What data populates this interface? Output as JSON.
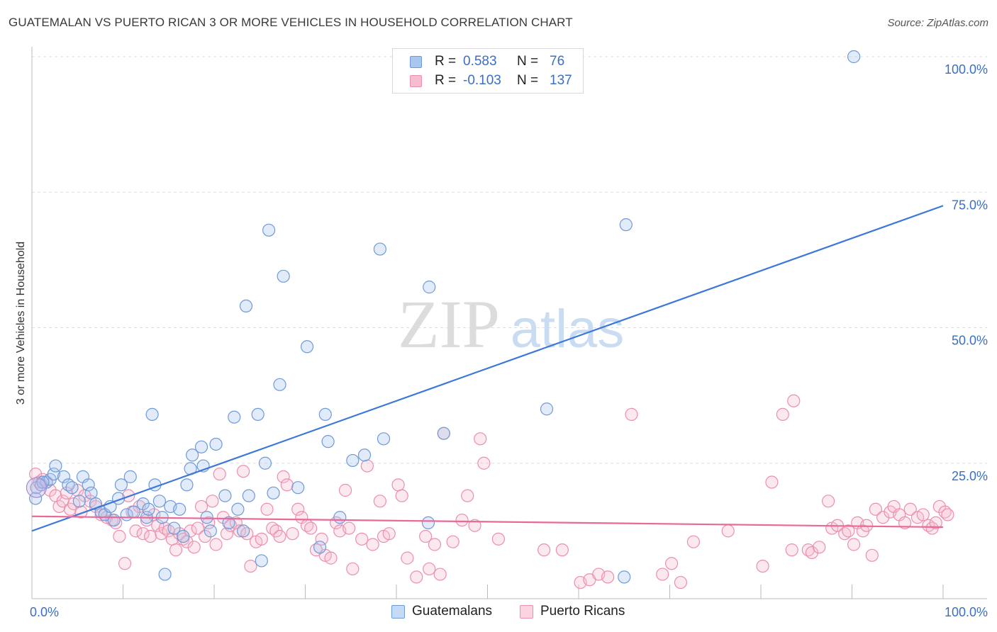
{
  "title": "GUATEMALAN VS PUERTO RICAN 3 OR MORE VEHICLES IN HOUSEHOLD CORRELATION CHART",
  "source": "Source: ZipAtlas.com",
  "watermark": {
    "zip": "ZIP",
    "atlas": "atlas"
  },
  "legend": {
    "r_label": "R =",
    "n_label": "N =",
    "rows": [
      {
        "r": "0.583",
        "n": "76",
        "color": "#a9c6ee",
        "border": "#6f9ad8"
      },
      {
        "r": "-0.103",
        "n": "137",
        "color": "#f6bcd0",
        "border": "#ea8fae"
      }
    ]
  },
  "chart_data": {
    "type": "scatter",
    "title": "GUATEMALAN VS PUERTO RICAN 3 OR MORE VEHICLES IN HOUSEHOLD CORRELATION CHART",
    "xlabel": "",
    "ylabel": "3 or more Vehicles in Household",
    "x_tick_labels": [
      "0.0%",
      "100.0%"
    ],
    "y_tick_labels": [
      "25.0%",
      "50.0%",
      "75.0%",
      "100.0%"
    ],
    "xlim": [
      0,
      100
    ],
    "ylim": [
      0,
      100
    ],
    "grid": true,
    "legend_position": "top-center",
    "series": [
      {
        "name": "Guatemalans",
        "color": "#6f9ad8",
        "fill": "#a9c6ee",
        "trend_color": "#3c78d8",
        "trend": [
          [
            0,
            12.5
          ],
          [
            100,
            72.5
          ]
        ],
        "points": [
          [
            0.4,
            18.5
          ],
          [
            0.5,
            20.5
          ],
          [
            1.0,
            21.0
          ],
          [
            1.6,
            21.5
          ],
          [
            2.0,
            22.0
          ],
          [
            2.4,
            23.0
          ],
          [
            2.6,
            24.5
          ],
          [
            3.5,
            22.5
          ],
          [
            4.0,
            21.0
          ],
          [
            4.4,
            20.5
          ],
          [
            5.2,
            18.0
          ],
          [
            5.6,
            22.5
          ],
          [
            6.2,
            21.0
          ],
          [
            6.5,
            19.5
          ],
          [
            7.0,
            17.5
          ],
          [
            7.6,
            16.0
          ],
          [
            8.0,
            15.5
          ],
          [
            8.6,
            17.0
          ],
          [
            9.0,
            14.5
          ],
          [
            9.5,
            18.5
          ],
          [
            9.8,
            21.0
          ],
          [
            10.4,
            15.5
          ],
          [
            10.8,
            22.5
          ],
          [
            11.2,
            16.0
          ],
          [
            12.2,
            17.5
          ],
          [
            12.6,
            15.0
          ],
          [
            12.8,
            16.5
          ],
          [
            13.2,
            34.0
          ],
          [
            13.5,
            21.0
          ],
          [
            14.0,
            18.0
          ],
          [
            14.3,
            15.0
          ],
          [
            14.6,
            4.5
          ],
          [
            15.2,
            17.0
          ],
          [
            15.6,
            13.0
          ],
          [
            16.2,
            16.5
          ],
          [
            16.6,
            11.5
          ],
          [
            17.0,
            21.0
          ],
          [
            17.4,
            24.0
          ],
          [
            17.6,
            26.5
          ],
          [
            18.6,
            28.0
          ],
          [
            18.8,
            24.5
          ],
          [
            19.2,
            15.0
          ],
          [
            19.6,
            12.5
          ],
          [
            20.2,
            28.5
          ],
          [
            21.2,
            19.0
          ],
          [
            21.6,
            14.0
          ],
          [
            22.2,
            33.5
          ],
          [
            22.6,
            16.5
          ],
          [
            23.2,
            12.5
          ],
          [
            23.5,
            54.0
          ],
          [
            23.8,
            19.0
          ],
          [
            24.8,
            34.0
          ],
          [
            25.2,
            7.0
          ],
          [
            25.6,
            25.0
          ],
          [
            26.0,
            68.0
          ],
          [
            26.5,
            19.5
          ],
          [
            27.2,
            39.5
          ],
          [
            27.6,
            59.5
          ],
          [
            29.2,
            20.5
          ],
          [
            30.2,
            46.5
          ],
          [
            31.6,
            9.5
          ],
          [
            32.2,
            34.0
          ],
          [
            32.5,
            29.0
          ],
          [
            33.8,
            15.0
          ],
          [
            35.2,
            25.5
          ],
          [
            36.5,
            26.5
          ],
          [
            38.2,
            64.5
          ],
          [
            38.6,
            29.5
          ],
          [
            43.6,
            57.5
          ],
          [
            43.5,
            14.0
          ],
          [
            45.2,
            30.5
          ],
          [
            56.5,
            35.0
          ],
          [
            65.2,
            69.0
          ],
          [
            65.0,
            4.0
          ],
          [
            90.2,
            100.0
          ],
          [
            1.2,
            21.5
          ]
        ]
      },
      {
        "name": "Puerto Ricans",
        "color": "#ea8fae",
        "fill": "#f6bcd0",
        "trend_color": "#e8699a",
        "trend": [
          [
            0,
            15.2
          ],
          [
            100,
            13.2
          ]
        ],
        "points": [
          [
            0.4,
            23.0
          ],
          [
            0.8,
            21.5
          ],
          [
            1.2,
            22.0
          ],
          [
            1.6,
            21.5
          ],
          [
            2.0,
            20.0
          ],
          [
            2.6,
            19.0
          ],
          [
            3.0,
            17.0
          ],
          [
            3.4,
            18.0
          ],
          [
            3.8,
            19.5
          ],
          [
            4.2,
            16.5
          ],
          [
            4.6,
            17.5
          ],
          [
            5.0,
            20.0
          ],
          [
            5.4,
            16.0
          ],
          [
            5.8,
            19.0
          ],
          [
            6.4,
            18.0
          ],
          [
            7.0,
            17.0
          ],
          [
            7.6,
            15.5
          ],
          [
            8.2,
            15.0
          ],
          [
            8.8,
            14.5
          ],
          [
            9.2,
            14.0
          ],
          [
            9.6,
            11.5
          ],
          [
            10.2,
            6.5
          ],
          [
            10.6,
            19.0
          ],
          [
            11.0,
            16.0
          ],
          [
            11.4,
            12.5
          ],
          [
            11.8,
            17.0
          ],
          [
            12.2,
            12.0
          ],
          [
            12.6,
            14.5
          ],
          [
            13.0,
            11.5
          ],
          [
            13.4,
            15.5
          ],
          [
            13.8,
            13.5
          ],
          [
            14.2,
            12.0
          ],
          [
            14.6,
            13.0
          ],
          [
            15.0,
            12.5
          ],
          [
            15.4,
            11.0
          ],
          [
            15.8,
            9.0
          ],
          [
            16.2,
            12.0
          ],
          [
            16.6,
            11.0
          ],
          [
            17.0,
            10.5
          ],
          [
            17.4,
            12.5
          ],
          [
            17.8,
            9.5
          ],
          [
            18.2,
            13.0
          ],
          [
            18.6,
            17.0
          ],
          [
            19.0,
            11.5
          ],
          [
            19.4,
            14.0
          ],
          [
            19.8,
            18.0
          ],
          [
            20.2,
            10.0
          ],
          [
            20.6,
            23.0
          ],
          [
            21.0,
            15.0
          ],
          [
            21.4,
            12.0
          ],
          [
            21.8,
            13.5
          ],
          [
            22.4,
            14.0
          ],
          [
            22.8,
            12.5
          ],
          [
            23.2,
            23.5
          ],
          [
            23.6,
            12.0
          ],
          [
            24.0,
            6.0
          ],
          [
            24.6,
            10.5
          ],
          [
            25.2,
            11.0
          ],
          [
            25.8,
            16.5
          ],
          [
            26.4,
            13.0
          ],
          [
            26.8,
            12.5
          ],
          [
            27.2,
            11.5
          ],
          [
            27.6,
            22.5
          ],
          [
            28.0,
            21.0
          ],
          [
            28.6,
            12.0
          ],
          [
            29.2,
            16.5
          ],
          [
            29.6,
            15.0
          ],
          [
            30.2,
            13.5
          ],
          [
            30.6,
            13.0
          ],
          [
            31.2,
            9.0
          ],
          [
            31.8,
            11.0
          ],
          [
            32.2,
            8.0
          ],
          [
            32.8,
            7.5
          ],
          [
            33.4,
            14.0
          ],
          [
            33.8,
            12.5
          ],
          [
            34.4,
            20.0
          ],
          [
            34.8,
            13.0
          ],
          [
            35.2,
            5.5
          ],
          [
            36.2,
            11.0
          ],
          [
            36.8,
            24.5
          ],
          [
            37.4,
            10.0
          ],
          [
            38.2,
            18.0
          ],
          [
            38.6,
            11.5
          ],
          [
            39.2,
            12.0
          ],
          [
            40.2,
            21.0
          ],
          [
            40.6,
            19.0
          ],
          [
            41.2,
            7.5
          ],
          [
            42.2,
            4.0
          ],
          [
            43.2,
            11.5
          ],
          [
            43.6,
            5.5
          ],
          [
            44.2,
            10.0
          ],
          [
            44.8,
            4.5
          ],
          [
            45.2,
            30.5
          ],
          [
            46.2,
            10.5
          ],
          [
            47.2,
            14.5
          ],
          [
            47.8,
            19.0
          ],
          [
            48.6,
            13.5
          ],
          [
            49.2,
            29.5
          ],
          [
            49.6,
            25.0
          ],
          [
            51.2,
            11.0
          ],
          [
            56.2,
            9.0
          ],
          [
            58.2,
            9.0
          ],
          [
            60.2,
            3.0
          ],
          [
            61.2,
            3.5
          ],
          [
            62.2,
            4.5
          ],
          [
            63.2,
            4.0
          ],
          [
            65.8,
            34.0
          ],
          [
            69.2,
            4.5
          ],
          [
            70.2,
            6.5
          ],
          [
            71.2,
            3.0
          ],
          [
            72.6,
            10.5
          ],
          [
            76.4,
            12.5
          ],
          [
            80.2,
            6.0
          ],
          [
            81.2,
            21.5
          ],
          [
            82.4,
            34.0
          ],
          [
            83.6,
            36.5
          ],
          [
            83.4,
            9.0
          ],
          [
            85.2,
            9.0
          ],
          [
            85.6,
            8.5
          ],
          [
            86.4,
            9.5
          ],
          [
            87.4,
            18.0
          ],
          [
            87.8,
            13.0
          ],
          [
            88.4,
            13.5
          ],
          [
            89.2,
            12.0
          ],
          [
            89.6,
            12.5
          ],
          [
            90.2,
            10.0
          ],
          [
            90.6,
            14.0
          ],
          [
            91.2,
            12.5
          ],
          [
            91.6,
            13.5
          ],
          [
            92.2,
            8.0
          ],
          [
            92.6,
            16.5
          ],
          [
            93.4,
            15.0
          ],
          [
            94.2,
            16.0
          ],
          [
            94.6,
            17.0
          ],
          [
            95.2,
            15.5
          ],
          [
            95.8,
            14.0
          ],
          [
            96.4,
            16.5
          ],
          [
            97.2,
            15.0
          ],
          [
            97.8,
            15.5
          ],
          [
            98.4,
            13.5
          ],
          [
            98.8,
            13.0
          ],
          [
            99.2,
            14.0
          ],
          [
            99.6,
            17.0
          ],
          [
            100.2,
            16.0
          ],
          [
            100.5,
            15.5
          ]
        ]
      }
    ]
  }
}
